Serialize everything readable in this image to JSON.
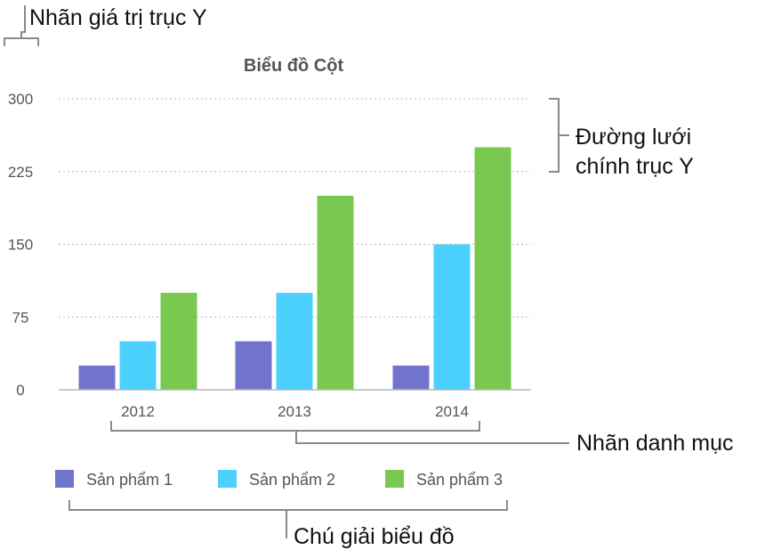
{
  "annotations": {
    "y_value_labels": "Nhãn giá trị trục Y",
    "major_gridlines_line1": "Đường lưới",
    "major_gridlines_line2": "chính trục Y",
    "category_labels": "Nhãn danh mục",
    "chart_legend": "Chú giải biểu đồ"
  },
  "chart_data": {
    "type": "bar",
    "title": "Biểu đồ Cột",
    "xlabel": "",
    "ylabel": "",
    "categories": [
      "2012",
      "2013",
      "2014"
    ],
    "series": [
      {
        "name": "Sản phẩm 1",
        "values": [
          25,
          50,
          25
        ],
        "color": "#7174cc"
      },
      {
        "name": "Sản phẩm 2",
        "values": [
          50,
          100,
          150
        ],
        "color": "#4cd0fd"
      },
      {
        "name": "Sản phẩm 3",
        "values": [
          100,
          200,
          250
        ],
        "color": "#79c84f"
      }
    ],
    "ylim": [
      0,
      300
    ],
    "yticks": [
      "0",
      "75",
      "150",
      "225",
      "300"
    ],
    "grid": true,
    "legend_position": "bottom"
  }
}
